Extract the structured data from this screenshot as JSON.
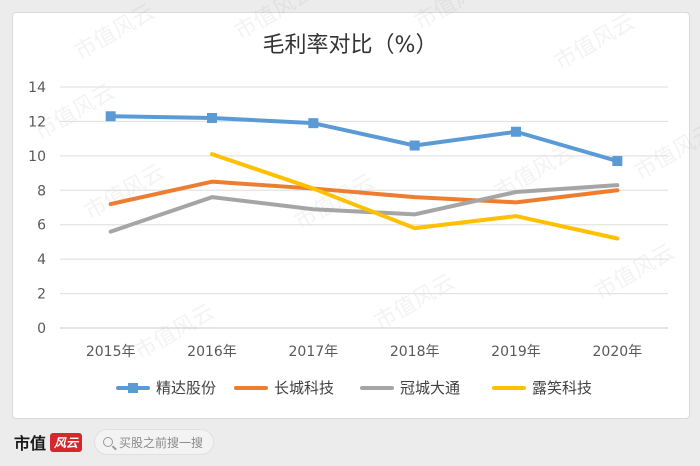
{
  "chart_data": {
    "type": "line",
    "title": "毛利率对比（%）",
    "categories": [
      "2015年",
      "2016年",
      "2017年",
      "2018年",
      "2019年",
      "2020年"
    ],
    "ylim": [
      0,
      14
    ],
    "yticks": [
      0,
      2,
      4,
      6,
      8,
      10,
      12,
      14
    ],
    "grid": true,
    "legend_position": "bottom",
    "series": [
      {
        "name": "精达股份",
        "color": "#5b9bd5",
        "marker": "square",
        "values": [
          12.3,
          12.2,
          11.9,
          10.6,
          11.4,
          9.7
        ]
      },
      {
        "name": "长城科技",
        "color": "#ed7d31",
        "marker": "none",
        "values": [
          7.2,
          8.5,
          8.1,
          7.6,
          7.3,
          8.0
        ]
      },
      {
        "name": "冠城大通",
        "color": "#a5a5a5",
        "marker": "none",
        "values": [
          5.6,
          7.6,
          6.9,
          6.6,
          7.9,
          8.3
        ]
      },
      {
        "name": "露笑科技",
        "color": "#ffc000",
        "marker": "none",
        "values": [
          null,
          10.1,
          8.1,
          5.8,
          6.5,
          5.2
        ]
      }
    ]
  },
  "footer": {
    "brand": "市值",
    "brand_badge": "风云",
    "search_placeholder": "买股之前搜一搜"
  },
  "watermark": "市值风云"
}
